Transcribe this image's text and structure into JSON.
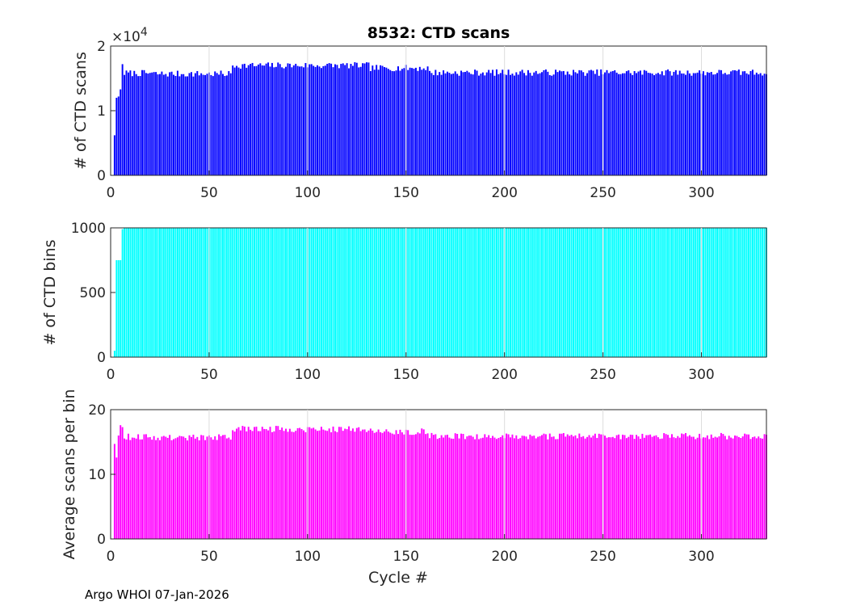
{
  "chart_data": [
    {
      "type": "bar",
      "title": "8532: CTD scans",
      "xlabel": "",
      "ylabel": "# of CTD scans",
      "exponent_label": "×10^4",
      "xlim": [
        0,
        333
      ],
      "ylim": [
        0,
        20000
      ],
      "xticks": [
        0,
        50,
        100,
        150,
        200,
        250,
        300
      ],
      "yticks": [
        0,
        10000,
        20000
      ],
      "ytick_labels": [
        "0",
        "1",
        "2"
      ],
      "color": "#0000ff",
      "series": [
        {
          "name": "CTD scans",
          "values": []
        }
      ],
      "profile": {
        "start": [
          0,
          6200,
          12000,
          12200,
          13300,
          17200
        ],
        "segments": [
          {
            "from": 6,
            "to": 20,
            "level": 15800
          },
          {
            "from": 21,
            "to": 60,
            "level": 15700
          },
          {
            "from": 61,
            "to": 130,
            "level": 17000
          },
          {
            "from": 131,
            "to": 160,
            "level": 16600
          },
          {
            "from": 161,
            "to": 333,
            "level": 15900
          }
        ],
        "jitter": 500
      }
    },
    {
      "type": "bar",
      "title": "",
      "xlabel": "",
      "ylabel": "# of CTD bins",
      "xlim": [
        0,
        333
      ],
      "ylim": [
        0,
        1000
      ],
      "xticks": [
        0,
        50,
        100,
        150,
        200,
        250,
        300
      ],
      "yticks": [
        0,
        500,
        1000
      ],
      "ytick_labels": [
        "0",
        "500",
        "1000"
      ],
      "color": "#00ffff",
      "series": [
        {
          "name": "CTD bins",
          "values": []
        }
      ],
      "profile": {
        "start": [
          0,
          50,
          750,
          750,
          750,
          990
        ],
        "segments": [
          {
            "from": 6,
            "to": 333,
            "level": 1000
          }
        ],
        "jitter": 0
      }
    },
    {
      "type": "bar",
      "title": "",
      "xlabel": "Cycle #",
      "ylabel": "Average scans per bin",
      "xlim": [
        0,
        333
      ],
      "ylim": [
        0,
        20
      ],
      "xticks": [
        0,
        50,
        100,
        150,
        200,
        250,
        300
      ],
      "yticks": [
        0,
        10,
        20
      ],
      "ytick_labels": [
        "0",
        "10",
        "20"
      ],
      "color": "#ff00ff",
      "series": [
        {
          "name": "Average scans per bin",
          "values": []
        }
      ],
      "profile": {
        "start": [
          0,
          14700,
          12600,
          16000,
          17600,
          17300
        ],
        "scale": 0.001,
        "segments": [
          {
            "from": 6,
            "to": 20,
            "level": 15800
          },
          {
            "from": 21,
            "to": 60,
            "level": 15700
          },
          {
            "from": 61,
            "to": 130,
            "level": 17000
          },
          {
            "from": 131,
            "to": 160,
            "level": 16600
          },
          {
            "from": 161,
            "to": 333,
            "level": 15900
          }
        ],
        "jitter": 500
      }
    }
  ],
  "footer": "Argo WHOI 07-Jan-2026"
}
